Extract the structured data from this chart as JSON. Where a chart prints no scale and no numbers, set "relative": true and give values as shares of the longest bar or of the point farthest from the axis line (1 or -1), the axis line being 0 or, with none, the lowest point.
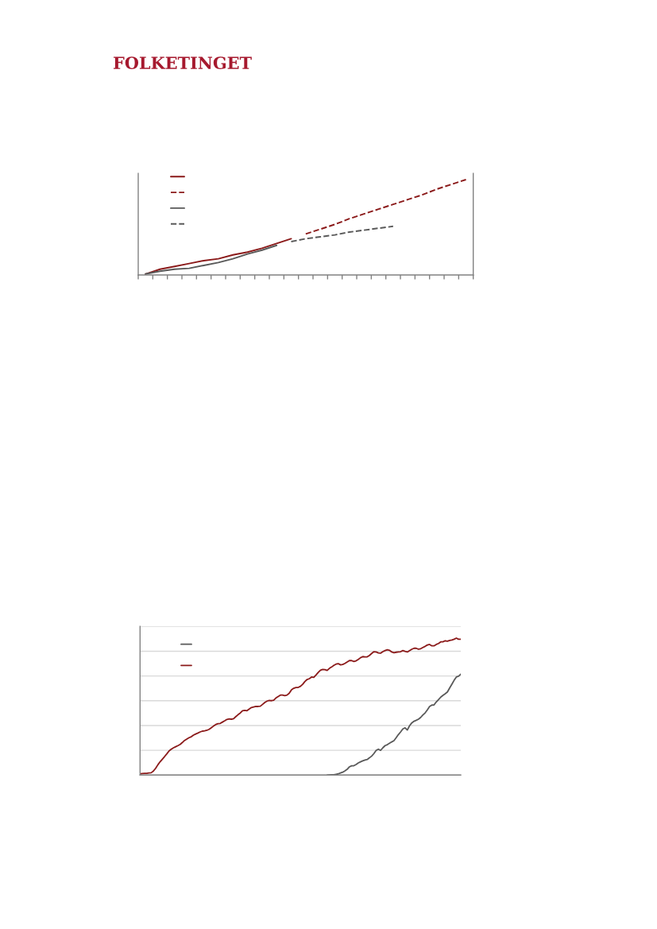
{
  "chart_data": [
    {
      "type": "line",
      "relative": true,
      "annotations": [
        "FOLKETINGET"
      ],
      "categories": [
        null,
        null,
        null,
        null,
        null,
        null,
        null,
        null,
        null,
        null,
        null,
        null,
        null,
        null,
        null,
        null,
        null,
        null,
        null,
        null,
        null,
        null,
        null
      ],
      "series": [
        {
          "color": "#8b1a1a",
          "values": [
            0.01,
            0.06,
            0.09,
            0.12,
            0.15,
            0.17,
            0.21,
            0.24,
            0.28,
            0.33,
            0.38,
            null,
            null,
            null,
            null,
            null,
            null,
            null,
            null,
            null,
            null,
            null,
            null
          ]
        },
        {
          "color": "#8b1a1a",
          "line_style": "dashed",
          "values": [
            null,
            null,
            null,
            null,
            null,
            null,
            null,
            null,
            null,
            null,
            null,
            0.43,
            0.48,
            0.53,
            0.59,
            0.64,
            0.69,
            0.74,
            0.79,
            0.84,
            0.9,
            0.95,
            1.0
          ]
        },
        {
          "color": "#595959",
          "values": [
            0.01,
            0.04,
            0.06,
            0.07,
            0.1,
            0.13,
            0.17,
            0.22,
            0.26,
            0.31,
            null,
            null,
            null,
            null,
            null,
            null,
            null,
            null,
            null,
            null,
            null,
            null,
            null
          ]
        },
        {
          "color": "#595959",
          "line_style": "dashed",
          "values": [
            null,
            null,
            null,
            null,
            null,
            null,
            null,
            null,
            null,
            null,
            0.35,
            0.38,
            0.4,
            0.42,
            0.45,
            0.47,
            0.49,
            0.51,
            null,
            null,
            null,
            null,
            null
          ]
        }
      ]
    },
    {
      "type": "line",
      "relative": true,
      "grid": "y",
      "categories": [
        null,
        null,
        null,
        null,
        null,
        null,
        null,
        null,
        null,
        null,
        null,
        null,
        null,
        null,
        null,
        null,
        null,
        null,
        null,
        null,
        null,
        null,
        null,
        null,
        null,
        null,
        null,
        null,
        null,
        null,
        null,
        null,
        null,
        null,
        null,
        null,
        null,
        null,
        null,
        null,
        null,
        null,
        null,
        null,
        null,
        null,
        null,
        null,
        null,
        null,
        null,
        null,
        null,
        null,
        null,
        null,
        null,
        null,
        null,
        null,
        null,
        null,
        null,
        null,
        null,
        null,
        null,
        null,
        null,
        null,
        null,
        null,
        null,
        null,
        null,
        null,
        null,
        null,
        null,
        null,
        null,
        null,
        null,
        null,
        null,
        null,
        null,
        null,
        null,
        null,
        null,
        null,
        null,
        null,
        null,
        null,
        null,
        null,
        null,
        null,
        null,
        null,
        null,
        null,
        null,
        null,
        null,
        null,
        null,
        null,
        null,
        null,
        null,
        null,
        null,
        null,
        null,
        null,
        null,
        null,
        null,
        null,
        null,
        null,
        null,
        null,
        null,
        null,
        null,
        null,
        null,
        null,
        null,
        null,
        null,
        null,
        null,
        null,
        null,
        null,
        null,
        null,
        null,
        null,
        null
      ],
      "series": [
        {
          "color": "#595959",
          "values": [
            null,
            null,
            null,
            null,
            null,
            null,
            null,
            null,
            null,
            null,
            null,
            null,
            null,
            null,
            null,
            null,
            null,
            null,
            null,
            null,
            null,
            null,
            null,
            null,
            null,
            null,
            null,
            null,
            null,
            null,
            null,
            null,
            null,
            null,
            null,
            null,
            null,
            null,
            null,
            null,
            null,
            null,
            null,
            null,
            null,
            null,
            null,
            null,
            null,
            null,
            null,
            null,
            null,
            null,
            null,
            null,
            null,
            null,
            null,
            null,
            null,
            null,
            null,
            null,
            null,
            null,
            null,
            null,
            null,
            null,
            null,
            null,
            null,
            null,
            null,
            null,
            null,
            null,
            null,
            null,
            null,
            null,
            null,
            null,
            0,
            0.001,
            0.002,
            0.002,
            0.006,
            0.009,
            0.015,
            0.021,
            0.031,
            0.042,
            0.06,
            0.068,
            0.068,
            0.077,
            0.089,
            0.097,
            0.104,
            0.11,
            0.114,
            0.126,
            0.139,
            0.157,
            0.18,
            0.189,
            0.18,
            0.199,
            0.215,
            0.222,
            0.232,
            0.242,
            0.251,
            0.273,
            0.296,
            0.315,
            0.337,
            0.345,
            0.329,
            0.36,
            0.381,
            0.393,
            0.4,
            0.408,
            0.421,
            0.439,
            0.454,
            0.476,
            0.501,
            0.511,
            0.512,
            0.534,
            0.551,
            0.569,
            0.582,
            0.594,
            0.607,
            0.636,
            0.663,
            0.692,
            0.716,
            0.722,
            0.737
          ]
        },
        {
          "color": "#8b1a1a",
          "values": [
            0.009,
            0.011,
            0.013,
            0.013,
            0.015,
            0.017,
            0.029,
            0.05,
            0.075,
            0.097,
            0.116,
            0.135,
            0.155,
            0.176,
            0.189,
            0.199,
            0.207,
            0.215,
            0.224,
            0.238,
            0.253,
            0.263,
            0.273,
            0.28,
            0.292,
            0.3,
            0.307,
            0.315,
            0.321,
            0.323,
            0.327,
            0.334,
            0.346,
            0.358,
            0.369,
            0.375,
            0.377,
            0.387,
            0.396,
            0.406,
            0.41,
            0.408,
            0.412,
            0.427,
            0.441,
            0.453,
            0.47,
            0.472,
            0.47,
            0.482,
            0.493,
            0.497,
            0.501,
            0.501,
            0.503,
            0.516,
            0.53,
            0.54,
            0.545,
            0.543,
            0.547,
            0.563,
            0.574,
            0.584,
            0.584,
            0.58,
            0.584,
            0.598,
            0.623,
            0.634,
            0.64,
            0.64,
            0.648,
            0.663,
            0.683,
            0.698,
            0.704,
            0.716,
            0.714,
            0.731,
            0.75,
            0.766,
            0.772,
            0.77,
            0.764,
            0.779,
            0.789,
            0.801,
            0.81,
            0.814,
            0.805,
            0.808,
            0.816,
            0.826,
            0.836,
            0.836,
            0.83,
            0.834,
            0.845,
            0.857,
            0.865,
            0.863,
            0.863,
            0.874,
            0.888,
            0.901,
            0.899,
            0.892,
            0.89,
            0.901,
            0.909,
            0.915,
            0.911,
            0.899,
            0.894,
            0.897,
            0.899,
            0.901,
            0.909,
            0.903,
            0.899,
            0.909,
            0.919,
            0.926,
            0.926,
            0.919,
            0.923,
            0.932,
            0.94,
            0.95,
            0.954,
            0.944,
            0.944,
            0.954,
            0.961,
            0.973,
            0.973,
            0.981,
            0.977,
            0.983,
            0.986,
            0.992,
            1.0,
            0.992,
            0.992
          ]
        }
      ]
    }
  ]
}
